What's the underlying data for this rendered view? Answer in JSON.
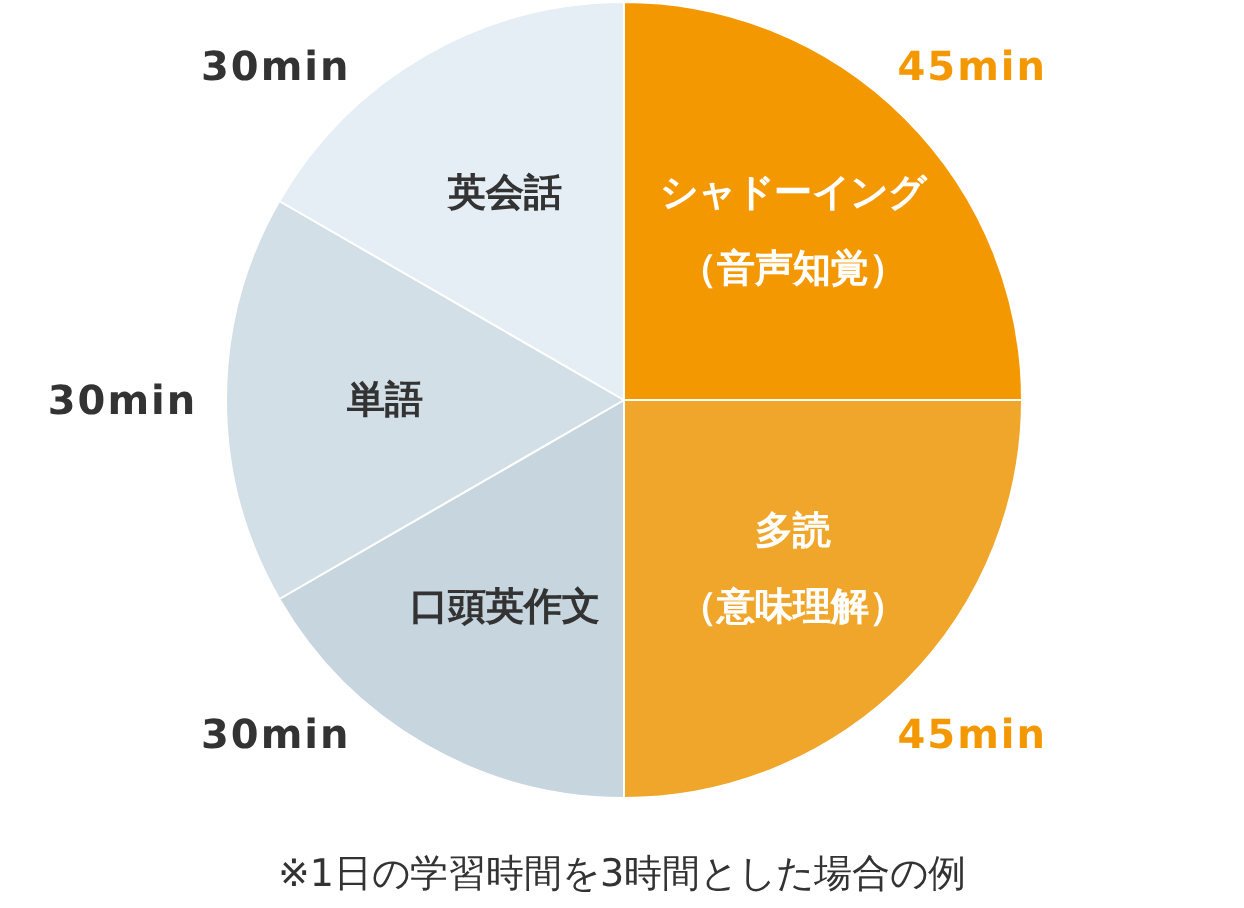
{
  "chart_data": {
    "type": "pie",
    "categories": [
      "シャドーイング（音声知覚）",
      "多読（意味理解）",
      "口頭英作文",
      "単語",
      "英会話"
    ],
    "values": [
      45,
      45,
      30,
      30,
      30
    ],
    "colors": [
      "#f39800",
      "#f0a62a",
      "#c7d5de",
      "#d3dfe6",
      "#e5eef5"
    ],
    "value_labels": [
      "45min",
      "45min",
      "30min",
      "30min",
      "30min"
    ],
    "annotations": [
      "※1日の学習時間を3時間とした場合の例"
    ]
  }
}
